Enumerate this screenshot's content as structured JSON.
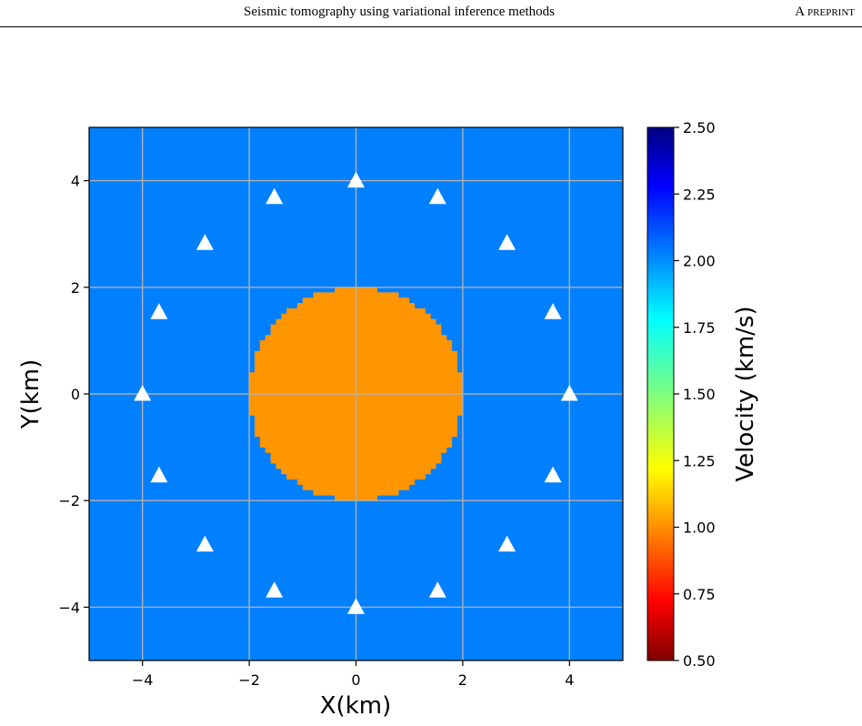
{
  "header": {
    "title": "Seismic tomography using variational inference methods",
    "tag": "A preprint"
  },
  "colors": {
    "background": "#0080ff",
    "anomaly": "#ff9500",
    "grid": "#b0b0b0",
    "station": "#ffffff"
  },
  "chart_data": {
    "type": "heatmap",
    "xlabel": "X(km)",
    "ylabel": "Y(km)",
    "xlim": [
      -5,
      5
    ],
    "ylim": [
      -5,
      5
    ],
    "xticks": [
      -4,
      -2,
      0,
      2,
      4
    ],
    "yticks": [
      -4,
      -2,
      0,
      2,
      4
    ],
    "grid": true,
    "model": {
      "background_velocity": 2.0,
      "anomaly": {
        "shape": "circle",
        "center": [
          0,
          0
        ],
        "radius": 2.0,
        "velocity": 1.0
      },
      "grid_cells_per_axis": 100
    },
    "stations": [
      {
        "x": 4.0,
        "y": 0.0
      },
      {
        "x": 3.69,
        "y": 1.53
      },
      {
        "x": 2.83,
        "y": 2.83
      },
      {
        "x": 1.53,
        "y": 3.69
      },
      {
        "x": 0.0,
        "y": 4.0
      },
      {
        "x": -1.53,
        "y": 3.69
      },
      {
        "x": -2.83,
        "y": 2.83
      },
      {
        "x": -3.69,
        "y": 1.53
      },
      {
        "x": -4.0,
        "y": 0.0
      },
      {
        "x": -3.69,
        "y": -1.53
      },
      {
        "x": -2.83,
        "y": -2.83
      },
      {
        "x": -1.53,
        "y": -3.69
      },
      {
        "x": 0.0,
        "y": -4.0
      },
      {
        "x": 1.53,
        "y": -3.69
      },
      {
        "x": 2.83,
        "y": -2.83
      },
      {
        "x": 3.69,
        "y": -1.53
      }
    ],
    "colorbar": {
      "label": "Velocity (km/s)",
      "colormap": "jet",
      "range": [
        0.5,
        2.5
      ],
      "ticks": [
        0.5,
        0.75,
        1.0,
        1.25,
        1.5,
        1.75,
        2.0,
        2.25,
        2.5
      ],
      "tick_labels": [
        "0.50",
        "0.75",
        "1.00",
        "1.25",
        "1.50",
        "1.75",
        "2.00",
        "2.25",
        "2.50"
      ]
    }
  }
}
